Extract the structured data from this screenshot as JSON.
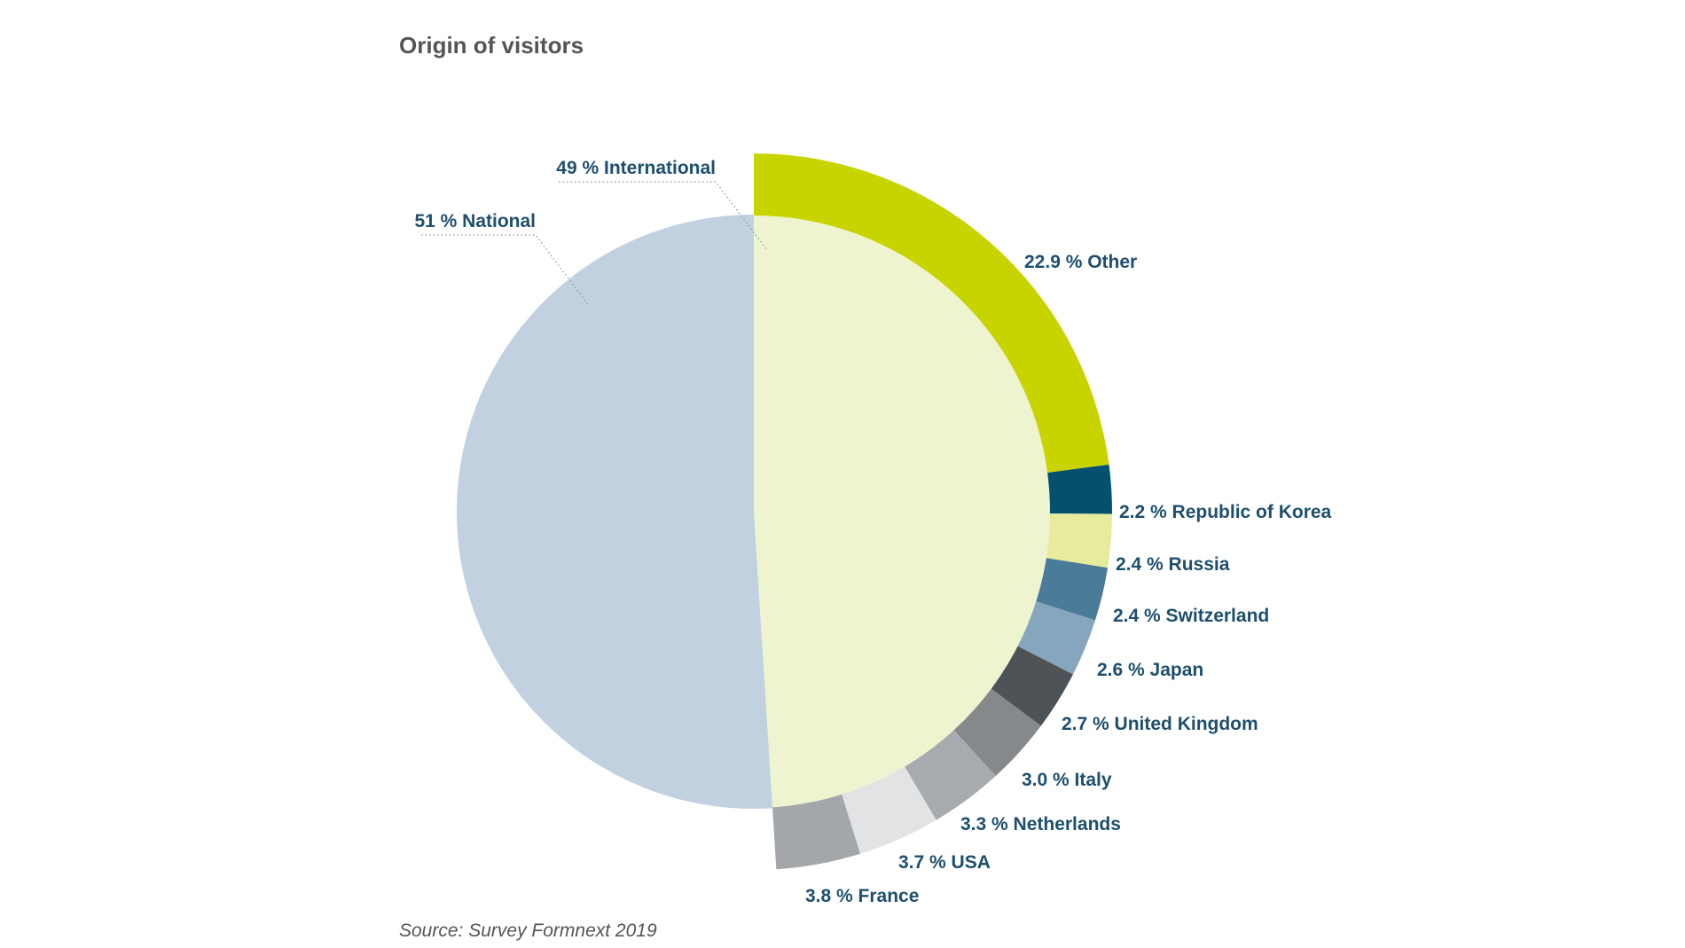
{
  "chart_data": {
    "type": "pie",
    "title": "Origin of visitors",
    "source": "Source: Survey Formnext 2019",
    "inner": [
      {
        "label": "49 % International",
        "value": 49,
        "color": "#eff4d0"
      },
      {
        "label": "51 % National",
        "value": 51,
        "color": "#c1d1df"
      }
    ],
    "outer": [
      {
        "label": "22.9 % Other",
        "value": 22.9,
        "color": "#c8d400"
      },
      {
        "label": "2.2 % Republic of Korea",
        "value": 2.2,
        "color": "#03506f"
      },
      {
        "label": "2.4 % Russia",
        "value": 2.4,
        "color": "#e6ec9c"
      },
      {
        "label": "2.4 % Switzerland",
        "value": 2.4,
        "color": "#4a7b99"
      },
      {
        "label": "2.6 % Japan",
        "value": 2.6,
        "color": "#86a6be"
      },
      {
        "label": "2.7 % United Kingdom",
        "value": 2.7,
        "color": "#4e5357"
      },
      {
        "label": "3.0 % Italy",
        "value": 3.0,
        "color": "#85898c"
      },
      {
        "label": "3.3 % Netherlands",
        "value": 3.3,
        "color": "#a8abad"
      },
      {
        "label": "3.7 % USA",
        "value": 3.7,
        "color": "#e1e3e4"
      },
      {
        "label": "3.8 % France",
        "value": 3.8,
        "color": "#a4a7a9"
      }
    ]
  }
}
